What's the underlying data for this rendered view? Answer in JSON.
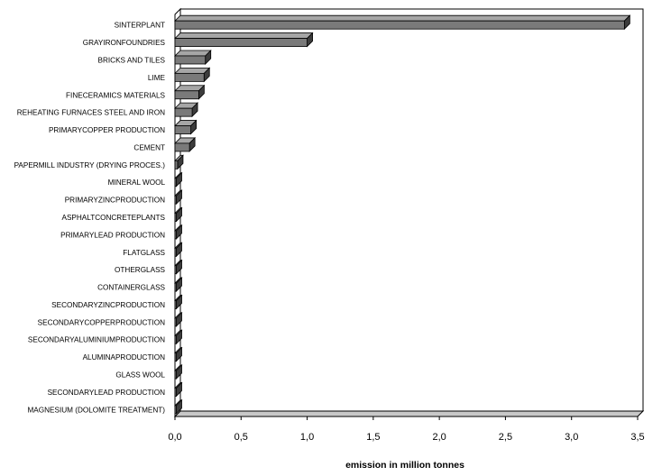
{
  "chart_data": {
    "type": "bar",
    "orientation": "horizontal",
    "title": "",
    "xlabel": "emission in million tonnes",
    "ylabel": "",
    "xlim": [
      0,
      3.5
    ],
    "xticks": [
      "0,0",
      "0,5",
      "1,0",
      "1,5",
      "2,0",
      "2,5",
      "3,0",
      "3,5"
    ],
    "grid": false,
    "legend": "none",
    "categories": [
      "SINTERPLANT",
      "GRAYIRONFOUNDRIES",
      "BRICKS AND TILES",
      "LIME",
      "FINECERAMICS MATERIALS",
      "REHEATING FURNACES STEEL AND IRON",
      "PRIMARYCOPPER PRODUCTION",
      "CEMENT",
      "PAPERMILL INDUSTRY (DRYING PROCES.)",
      "MINERAL WOOL",
      "PRIMARYZINCPRODUCTION",
      "ASPHALTCONCRETEPLANTS",
      "PRIMARYLEAD PRODUCTION",
      "FLATGLASS",
      "OTHERGLASS",
      "CONTAINERGLASS",
      "SECONDARYZINCPRODUCTION",
      "SECONDARYCOPPERPRODUCTION",
      "SECONDARYALUMINIUMPRODUCTION",
      "ALUMINAPRODUCTION",
      "GLASS WOOL",
      "SECONDARYLEAD PRODUCTION",
      "MAGNESIUM (DOLOMITE TREATMENT)"
    ],
    "values": [
      3.4,
      1.0,
      0.23,
      0.22,
      0.18,
      0.13,
      0.12,
      0.11,
      0.02,
      0.01,
      0.01,
      0.01,
      0.01,
      0.01,
      0.01,
      0.01,
      0.01,
      0.01,
      0.01,
      0.01,
      0.01,
      0.01,
      0.01
    ],
    "colors": {
      "bar_front": "#7a7a7a",
      "bar_top": "#a6a6a6",
      "bar_side": "#3c3c3c",
      "floor": "#c8c8c8",
      "frame": "#000000"
    }
  }
}
